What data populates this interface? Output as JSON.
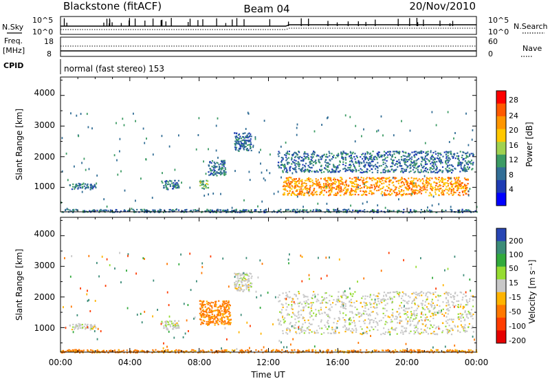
{
  "header": {
    "station": "Blackstone (fitACF)",
    "beam": "Beam 04",
    "date": "20/Nov/2010"
  },
  "noise_panel": {
    "left_label": "N.Sky",
    "right_label": "N.Search",
    "left_ticks": [
      "10^5",
      "10^0"
    ],
    "right_ticks": [
      "10^5",
      "10^0"
    ]
  },
  "freq_panel": {
    "left_label_1": "Freq.",
    "left_label_2": "[MHz]",
    "right_label": "Nave",
    "left_ticks": [
      "18",
      "8"
    ],
    "right_ticks": [
      "60",
      "0"
    ]
  },
  "cpid_panel": {
    "label": "CPID",
    "text": "normal (fast stereo) 153"
  },
  "power_panel": {
    "ylabel": "Slant Range [km]",
    "yticks": [
      "4000",
      "3000",
      "2000",
      "1000"
    ],
    "colorbar_label": "Power [dB]",
    "colorbar_ticks": [
      "28",
      "24",
      "20",
      "16",
      "12",
      "8",
      "4"
    ],
    "colorbar_colors": [
      "#ff0000",
      "#ff5a00",
      "#ff9600",
      "#ffc800",
      "#a0d250",
      "#3c9b64",
      "#326e96",
      "#1e3cb4",
      "#0000ff"
    ]
  },
  "velocity_panel": {
    "ylabel": "Slant Range [km]",
    "yticks": [
      "4000",
      "3000",
      "2000",
      "1000"
    ],
    "colorbar_label": "Velocity [m s⁻¹]",
    "colorbar_ticks": [
      "200",
      "100",
      "50",
      "15",
      "-15",
      "-50",
      "-100",
      "-200"
    ],
    "colorbar_colors": [
      "#2846b4",
      "#3c8c78",
      "#32aa3c",
      "#96dc32",
      "#c8c8c8",
      "#ffb400",
      "#ff7800",
      "#ff3c00",
      "#e60000"
    ]
  },
  "x_axis": {
    "label": "Time UT",
    "ticks": [
      "00:00",
      "04:00",
      "08:00",
      "12:00",
      "16:00",
      "20:00",
      "00:00"
    ]
  },
  "chart_data": [
    {
      "type": "heatmap",
      "name": "Power",
      "x_range": [
        0,
        24
      ],
      "y_range": [
        200,
        4600
      ],
      "xlabel": "Time UT",
      "ylabel": "Slant Range [km]",
      "colorbar_range": [
        0,
        32
      ],
      "regions": [
        {
          "t": [
            0.5,
            2.0
          ],
          "r": [
            950,
            1150
          ],
          "level": 8
        },
        {
          "t": [
            5.8,
            6.8
          ],
          "r": [
            950,
            1250
          ],
          "level": 8
        },
        {
          "t": [
            8.0,
            8.5
          ],
          "r": [
            950,
            1250
          ],
          "level": 14
        },
        {
          "t": [
            8.5,
            9.5
          ],
          "r": [
            1400,
            1900
          ],
          "level": 8
        },
        {
          "t": [
            10.0,
            11.0
          ],
          "r": [
            2200,
            2800
          ],
          "level": 8
        },
        {
          "t": [
            12.5,
            23.8
          ],
          "r": [
            1500,
            2200
          ],
          "level": 8
        },
        {
          "t": [
            12.8,
            23.5
          ],
          "r": [
            750,
            1350
          ],
          "level": 24
        },
        {
          "t": [
            0.0,
            24.0
          ],
          "r": [
            200,
            300
          ],
          "level": 8
        }
      ]
    },
    {
      "type": "heatmap",
      "name": "Velocity",
      "x_range": [
        0,
        24
      ],
      "y_range": [
        200,
        4600
      ],
      "xlabel": "Time UT",
      "ylabel": "Slant Range [km]",
      "colorbar_range": [
        -200,
        200
      ],
      "regions": [
        {
          "t": [
            0.5,
            2.0
          ],
          "r": [
            950,
            1150
          ],
          "velocity": 0
        },
        {
          "t": [
            5.8,
            6.8
          ],
          "r": [
            950,
            1250
          ],
          "velocity": 0
        },
        {
          "t": [
            8.0,
            9.8
          ],
          "r": [
            1100,
            1900
          ],
          "velocity": -60
        },
        {
          "t": [
            10.0,
            11.0
          ],
          "r": [
            2200,
            2800
          ],
          "velocity": 0
        },
        {
          "t": [
            12.5,
            23.8
          ],
          "r": [
            800,
            2200
          ],
          "velocity": 0
        },
        {
          "t": [
            0.0,
            24.0
          ],
          "r": [
            200,
            300
          ],
          "velocity": -60
        }
      ]
    }
  ]
}
